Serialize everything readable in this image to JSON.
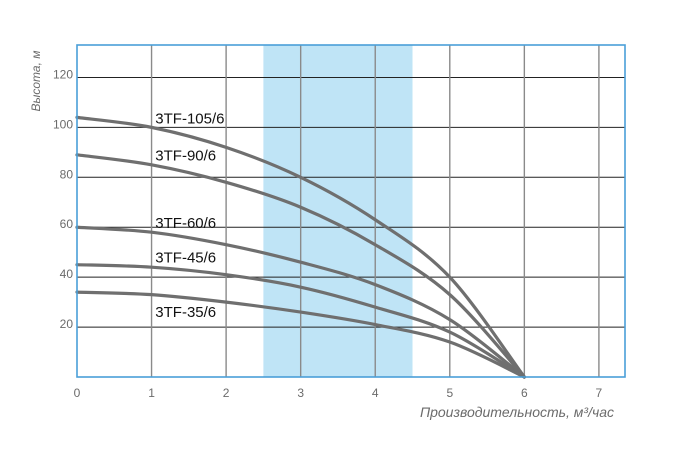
{
  "chart_data": {
    "type": "line",
    "title": "",
    "xlabel": "Производительность, м³/час",
    "ylabel": "Высота, м",
    "xlim": [
      0,
      7.35
    ],
    "ylim": [
      0,
      133
    ],
    "x_ticks": [
      0,
      1,
      2,
      3,
      4,
      5,
      6,
      7
    ],
    "y_ticks": [
      20,
      40,
      60,
      80,
      100,
      120
    ],
    "grid": true,
    "highlight_band": {
      "x_from": 2.5,
      "x_to": 4.5,
      "color": "#bfe4f6"
    },
    "colors": {
      "curve": "#6f6f6f",
      "frame": "#4a9fd8",
      "grid": "#8a8a8a",
      "grid_x": "#222222"
    },
    "series": [
      {
        "name": "3TF-105/6",
        "x": [
          0,
          1,
          2,
          3,
          4,
          5,
          6
        ],
        "values": [
          104,
          100,
          92,
          80,
          63,
          40,
          0
        ]
      },
      {
        "name": "3TF-90/6",
        "x": [
          0,
          1,
          2,
          3,
          4,
          5,
          6
        ],
        "values": [
          89,
          85,
          78,
          68,
          53,
          33,
          0
        ]
      },
      {
        "name": "3TF-60/6",
        "x": [
          0,
          1,
          2,
          3,
          4,
          5,
          6
        ],
        "values": [
          60,
          58,
          53,
          46,
          37,
          23,
          0
        ]
      },
      {
        "name": "3TF-45/6",
        "x": [
          0,
          1,
          2,
          3,
          4,
          5,
          6
        ],
        "values": [
          45,
          44,
          41,
          36,
          28,
          18,
          0
        ]
      },
      {
        "name": "3TF-35/6",
        "x": [
          0,
          1,
          2,
          3,
          4,
          5,
          6
        ],
        "values": [
          34,
          33,
          30,
          26,
          21,
          14,
          0
        ]
      }
    ]
  }
}
